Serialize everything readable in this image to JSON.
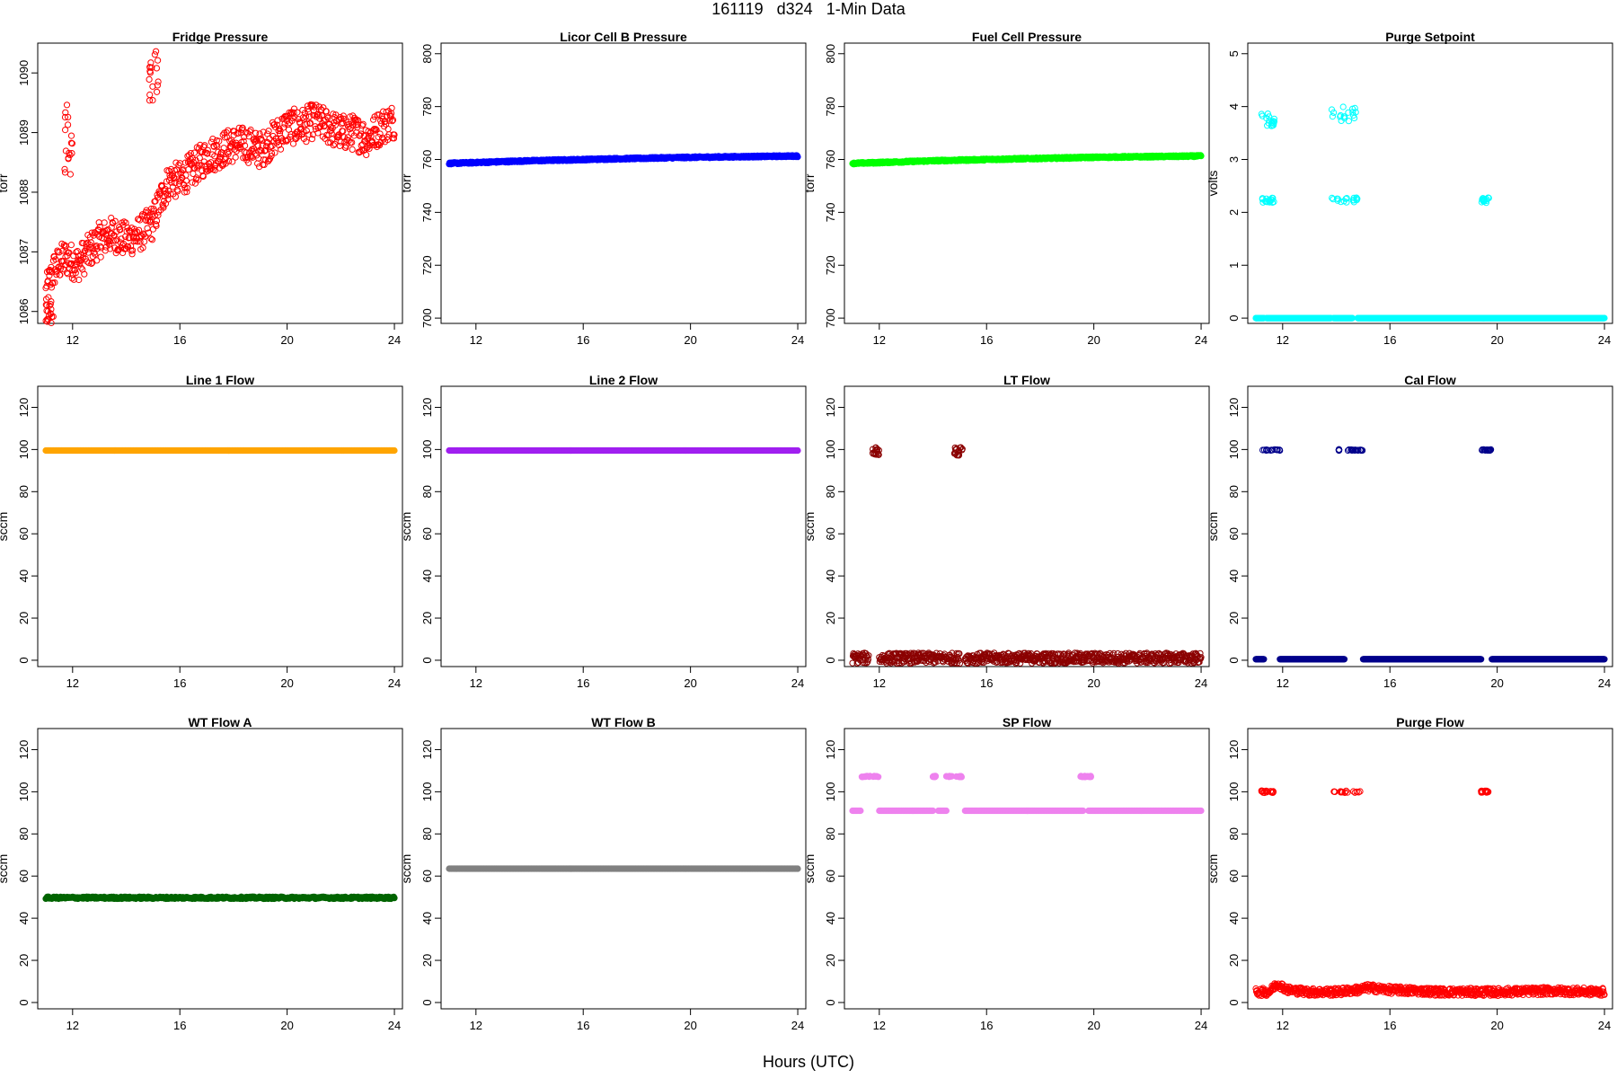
{
  "title": "161119   d324   1-Min Data",
  "xlabel": "Hours (UTC)",
  "chart_data": [
    {
      "type": "scatter",
      "title": "Fridge Pressure",
      "ylabel": "torr",
      "xlim": [
        10.7,
        24.3
      ],
      "ylim": [
        1085.8,
        1090.5
      ],
      "yticks": [
        1086,
        1087,
        1088,
        1089,
        1090
      ],
      "xticks": [
        12,
        16,
        20,
        24
      ],
      "color": "#ff0000",
      "marker": "open",
      "series": [
        {
          "trend": [
            [
              11.0,
              1086.3
            ],
            [
              11.3,
              1086.7
            ],
            [
              11.7,
              1086.9
            ],
            [
              12.2,
              1086.8
            ],
            [
              12.6,
              1087.0
            ],
            [
              13.0,
              1087.2
            ],
            [
              13.5,
              1087.3
            ],
            [
              14.0,
              1087.2
            ],
            [
              14.5,
              1087.3
            ],
            [
              15.0,
              1087.5
            ],
            [
              15.3,
              1087.9
            ],
            [
              15.6,
              1088.2
            ],
            [
              16.0,
              1088.2
            ],
            [
              16.5,
              1088.4
            ],
            [
              17.0,
              1088.6
            ],
            [
              17.5,
              1088.7
            ],
            [
              18.0,
              1088.8
            ],
            [
              18.5,
              1088.8
            ],
            [
              19.0,
              1088.7
            ],
            [
              19.5,
              1088.9
            ],
            [
              20.0,
              1089.1
            ],
            [
              20.5,
              1089.1
            ],
            [
              21.0,
              1089.2
            ],
            [
              21.5,
              1089.1
            ],
            [
              22.0,
              1089.0
            ],
            [
              22.5,
              1089.0
            ],
            [
              23.0,
              1088.9
            ],
            [
              23.5,
              1089.1
            ],
            [
              24.0,
              1089.2
            ]
          ],
          "spread": 0.3,
          "clusters": [
            {
              "x": [
                11.7,
                12.0
              ],
              "y": [
                1088.3,
                1089.6
              ]
            },
            {
              "x": [
                14.8,
                15.2
              ],
              "y": [
                1089.5,
                1090.4
              ]
            },
            {
              "x": [
                11.0,
                11.3
              ],
              "y": [
                1085.8,
                1086.2
              ]
            }
          ]
        }
      ]
    },
    {
      "type": "scatter",
      "title": "Licor Cell B Pressure",
      "ylabel": "torr",
      "xlim": [
        10.7,
        24.3
      ],
      "ylim": [
        698,
        804
      ],
      "yticks": [
        700,
        720,
        740,
        760,
        780,
        800
      ],
      "xticks": [
        12,
        16,
        20,
        24
      ],
      "color": "#0000ff",
      "marker": "filled",
      "series": [
        {
          "trend": [
            [
              11.0,
              758.5
            ],
            [
              14.0,
              759.5
            ],
            [
              17.0,
              760.2
            ],
            [
              20.0,
              760.8
            ],
            [
              24.0,
              761.3
            ]
          ],
          "spread": 0.3,
          "clusters": []
        }
      ]
    },
    {
      "type": "scatter",
      "title": "Fuel Cell Pressure",
      "ylabel": "torr",
      "xlim": [
        10.7,
        24.3
      ],
      "ylim": [
        698,
        804
      ],
      "yticks": [
        700,
        720,
        740,
        760,
        780,
        800
      ],
      "xticks": [
        12,
        16,
        20,
        24
      ],
      "color": "#00ff00",
      "marker": "filled",
      "series": [
        {
          "trend": [
            [
              11.0,
              758.5
            ],
            [
              14.0,
              759.5
            ],
            [
              17.0,
              760.2
            ],
            [
              20.0,
              760.8
            ],
            [
              24.0,
              761.3
            ]
          ],
          "spread": 0.3,
          "clusters": []
        }
      ]
    },
    {
      "type": "scatter",
      "title": "Purge Setpoint",
      "ylabel": "volts",
      "xlim": [
        10.7,
        24.3
      ],
      "ylim": [
        -0.1,
        5.2
      ],
      "yticks": [
        0,
        1,
        2,
        3,
        4,
        5
      ],
      "xticks": [
        12,
        16,
        20,
        24
      ],
      "color": "#00ffff",
      "marker": "open",
      "series": [
        {
          "levels": [
            {
              "x": [
                11.0,
                11.3
              ],
              "y": 0
            },
            {
              "x": [
                11.4,
                13.8
              ],
              "y": 0
            },
            {
              "x": [
                13.9,
                14.6
              ],
              "y": 0
            },
            {
              "x": [
                14.8,
                24.0
              ],
              "y": 0
            }
          ],
          "clusters": [
            {
              "x": [
                11.2,
                11.7
              ],
              "y": [
                3.6,
                3.9
              ]
            },
            {
              "x": [
                11.2,
                11.7
              ],
              "y": [
                2.18,
                2.28
              ]
            },
            {
              "x": [
                13.8,
                14.8
              ],
              "y": [
                3.7,
                4.0
              ]
            },
            {
              "x": [
                13.8,
                14.8
              ],
              "y": [
                2.18,
                2.28
              ]
            },
            {
              "x": [
                19.4,
                19.7
              ],
              "y": [
                2.18,
                2.28
              ]
            }
          ]
        }
      ]
    },
    {
      "type": "scatter",
      "title": "Line 1 Flow",
      "ylabel": "sccm",
      "xlim": [
        10.7,
        24.3
      ],
      "ylim": [
        -3,
        130
      ],
      "yticks": [
        0,
        20,
        40,
        60,
        80,
        100,
        120
      ],
      "xticks": [
        12,
        16,
        20,
        24
      ],
      "color": "#ffa500",
      "marker": "filled",
      "series": [
        {
          "levels": [
            {
              "x": [
                11.0,
                24.0
              ],
              "y": 99.5
            }
          ],
          "clusters": []
        }
      ]
    },
    {
      "type": "scatter",
      "title": "Line 2 Flow",
      "ylabel": "sccm",
      "xlim": [
        10.7,
        24.3
      ],
      "ylim": [
        -3,
        130
      ],
      "yticks": [
        0,
        20,
        40,
        60,
        80,
        100,
        120
      ],
      "xticks": [
        12,
        16,
        20,
        24
      ],
      "color": "#a020f0",
      "marker": "filled",
      "series": [
        {
          "levels": [
            {
              "x": [
                11.0,
                24.0
              ],
              "y": 99.5
            }
          ],
          "clusters": []
        }
      ]
    },
    {
      "type": "scatter",
      "title": "LT Flow",
      "ylabel": "sccm",
      "xlim": [
        10.7,
        24.3
      ],
      "ylim": [
        -3,
        130
      ],
      "yticks": [
        0,
        20,
        40,
        60,
        80,
        100,
        120
      ],
      "xticks": [
        12,
        16,
        20,
        24
      ],
      "color": "#8b0000",
      "marker": "open",
      "series": [
        {
          "levels": [
            {
              "x": [
                11.0,
                11.6
              ],
              "y": 1
            },
            {
              "x": [
                12.0,
                15.0
              ],
              "y": 1
            },
            {
              "x": [
                15.2,
                24.0
              ],
              "y": 1
            }
          ],
          "levelSpread": 2.5,
          "clusters": [
            {
              "x": [
                11.7,
                12.0
              ],
              "y": [
                97,
                101
              ]
            },
            {
              "x": [
                14.8,
                15.1
              ],
              "y": [
                97,
                101
              ]
            }
          ]
        }
      ]
    },
    {
      "type": "scatter",
      "title": "Cal Flow",
      "ylabel": "sccm",
      "xlim": [
        10.7,
        24.3
      ],
      "ylim": [
        -3,
        130
      ],
      "yticks": [
        0,
        20,
        40,
        60,
        80,
        100,
        120
      ],
      "xticks": [
        12,
        16,
        20,
        24
      ],
      "color": "#00008b",
      "marker": "open",
      "series": [
        {
          "levels": [
            {
              "x": [
                11.0,
                11.3
              ],
              "y": 0.5
            },
            {
              "x": [
                11.9,
                14.3
              ],
              "y": 0.5
            },
            {
              "x": [
                15.0,
                19.4
              ],
              "y": 0.5
            },
            {
              "x": [
                19.8,
                24.0
              ],
              "y": 0.5
            }
          ],
          "clusters": [
            {
              "x": [
                11.2,
                11.9
              ],
              "y": [
                99.5,
                100
              ]
            },
            {
              "x": [
                14.1,
                14.1
              ],
              "y": [
                99.5,
                100
              ]
            },
            {
              "x": [
                14.4,
                15.0
              ],
              "y": [
                99.5,
                100
              ]
            },
            {
              "x": [
                19.4,
                19.8
              ],
              "y": [
                99.5,
                100
              ]
            }
          ]
        }
      ]
    },
    {
      "type": "scatter",
      "title": "WT Flow A",
      "ylabel": "sccm",
      "xlim": [
        10.7,
        24.3
      ],
      "ylim": [
        -3,
        130
      ],
      "yticks": [
        0,
        20,
        40,
        60,
        80,
        100,
        120
      ],
      "xticks": [
        12,
        16,
        20,
        24
      ],
      "color": "#006400",
      "marker": "filled",
      "series": [
        {
          "levels": [
            {
              "x": [
                11.0,
                24.0
              ],
              "y": 49.7
            }
          ],
          "levelSpread": 0.5,
          "clusters": []
        }
      ]
    },
    {
      "type": "scatter",
      "title": "WT Flow B",
      "ylabel": "sccm",
      "xlim": [
        10.7,
        24.3
      ],
      "ylim": [
        -3,
        130
      ],
      "yticks": [
        0,
        20,
        40,
        60,
        80,
        100,
        120
      ],
      "xticks": [
        12,
        16,
        20,
        24
      ],
      "color": "#808080",
      "marker": "filled",
      "series": [
        {
          "levels": [
            {
              "x": [
                11.0,
                24.0
              ],
              "y": 63.5
            }
          ],
          "clusters": []
        }
      ]
    },
    {
      "type": "scatter",
      "title": "SP Flow",
      "ylabel": "sccm",
      "xlim": [
        10.7,
        24.3
      ],
      "ylim": [
        -3,
        130
      ],
      "yticks": [
        0,
        20,
        40,
        60,
        80,
        100,
        120
      ],
      "xticks": [
        12,
        16,
        20,
        24
      ],
      "color": "#ee82ee",
      "marker": "filled",
      "series": [
        {
          "levels": [
            {
              "x": [
                11.0,
                11.3
              ],
              "y": 91
            },
            {
              "x": [
                12.0,
                14.0
              ],
              "y": 91
            },
            {
              "x": [
                14.2,
                14.5
              ],
              "y": 91
            },
            {
              "x": [
                15.2,
                19.6
              ],
              "y": 91
            },
            {
              "x": [
                19.8,
                24.0
              ],
              "y": 91
            }
          ],
          "clusters": [
            {
              "x": [
                11.3,
                12.0
              ],
              "y": [
                107,
                107.5
              ]
            },
            {
              "x": [
                14.0,
                14.1
              ],
              "y": [
                107,
                107.5
              ]
            },
            {
              "x": [
                14.5,
                15.1
              ],
              "y": [
                107,
                107.5
              ]
            },
            {
              "x": [
                19.5,
                19.9
              ],
              "y": [
                107,
                107.5
              ]
            }
          ]
        }
      ]
    },
    {
      "type": "scatter",
      "title": "Purge Flow",
      "ylabel": "sccm",
      "xlim": [
        10.7,
        24.3
      ],
      "ylim": [
        -3,
        130
      ],
      "yticks": [
        0,
        20,
        40,
        60,
        80,
        100,
        120
      ],
      "xticks": [
        12,
        16,
        20,
        24
      ],
      "color": "#ff0000",
      "marker": "open",
      "series": [
        {
          "trend": [
            [
              11.0,
              5
            ],
            [
              11.5,
              5
            ],
            [
              11.8,
              9
            ],
            [
              12.2,
              6
            ],
            [
              13.0,
              5
            ],
            [
              14.0,
              5
            ],
            [
              14.8,
              6
            ],
            [
              15.2,
              7
            ],
            [
              16.0,
              6
            ],
            [
              18.0,
              5
            ],
            [
              20.0,
              5
            ],
            [
              22.0,
              5.5
            ],
            [
              24.0,
              5
            ]
          ],
          "spread": 1.8,
          "clusters": [
            {
              "x": [
                11.2,
                11.7
              ],
              "y": [
                99.5,
                100.5
              ]
            },
            {
              "x": [
                13.9,
                14.9
              ],
              "y": [
                99.5,
                100.5
              ]
            },
            {
              "x": [
                19.4,
                19.7
              ],
              "y": [
                99.5,
                100.5
              ]
            }
          ]
        }
      ]
    }
  ]
}
